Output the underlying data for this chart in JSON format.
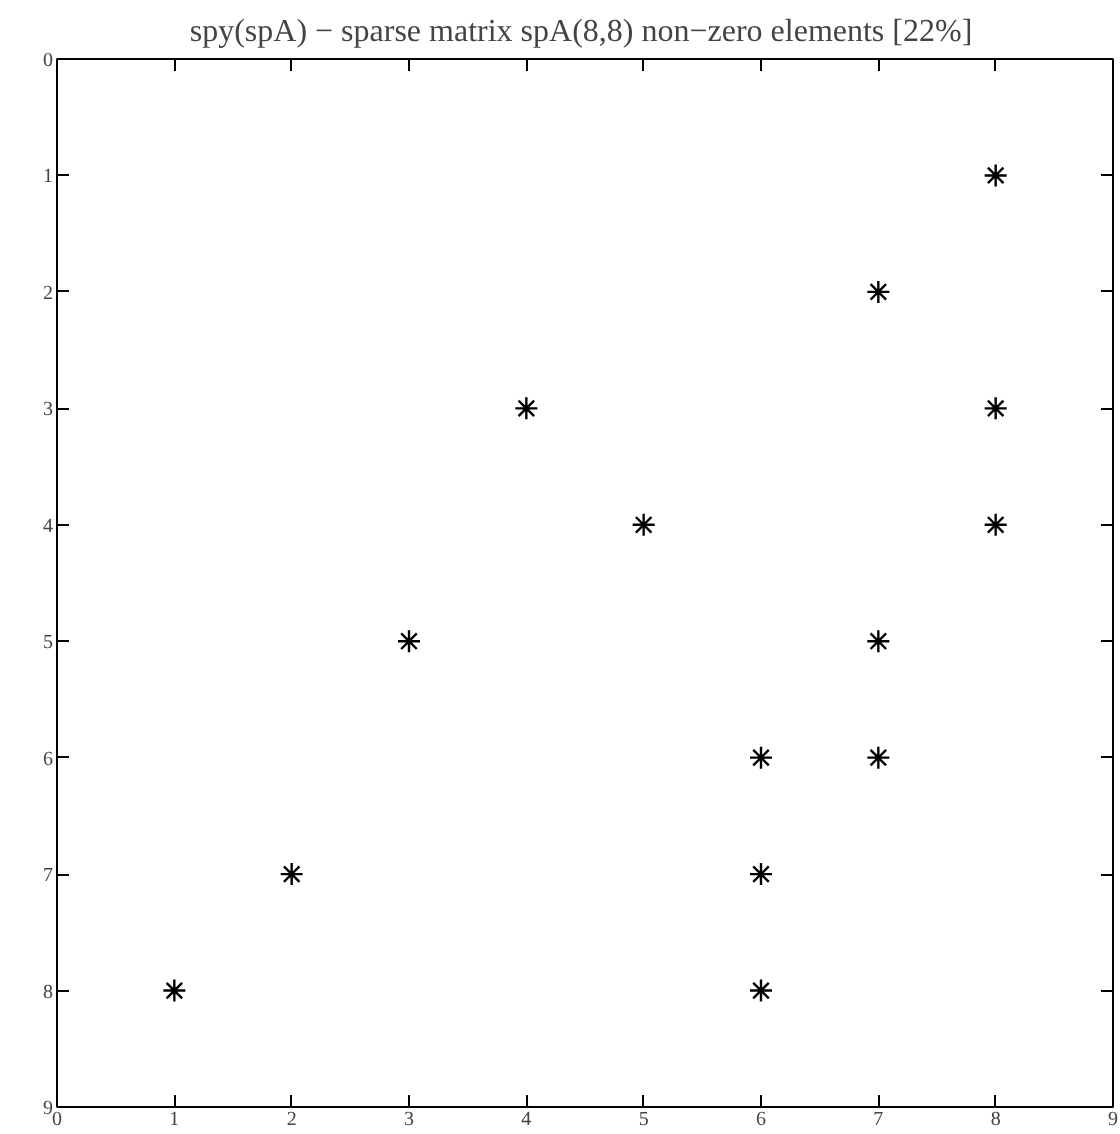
{
  "chart_data": {
    "type": "scatter",
    "title": "spy(spA) − sparse matrix spA(8,8)  non−zero elements [22%]",
    "x": [
      1,
      2,
      3,
      4,
      5,
      6,
      6,
      6,
      7,
      7,
      7,
      8,
      8,
      8
    ],
    "values": [
      8,
      7,
      5,
      3,
      4,
      6,
      7,
      8,
      2,
      5,
      6,
      1,
      3,
      4
    ],
    "color": "#000000",
    "marker": "cross",
    "grid": false,
    "legend": false,
    "xlim": [
      0,
      9
    ],
    "ylim": [
      9,
      0
    ],
    "xticks": [
      0,
      1,
      2,
      3,
      4,
      5,
      6,
      7,
      8,
      9
    ],
    "yticks": [
      0,
      1,
      2,
      3,
      4,
      5,
      6,
      7,
      8,
      9
    ]
  }
}
